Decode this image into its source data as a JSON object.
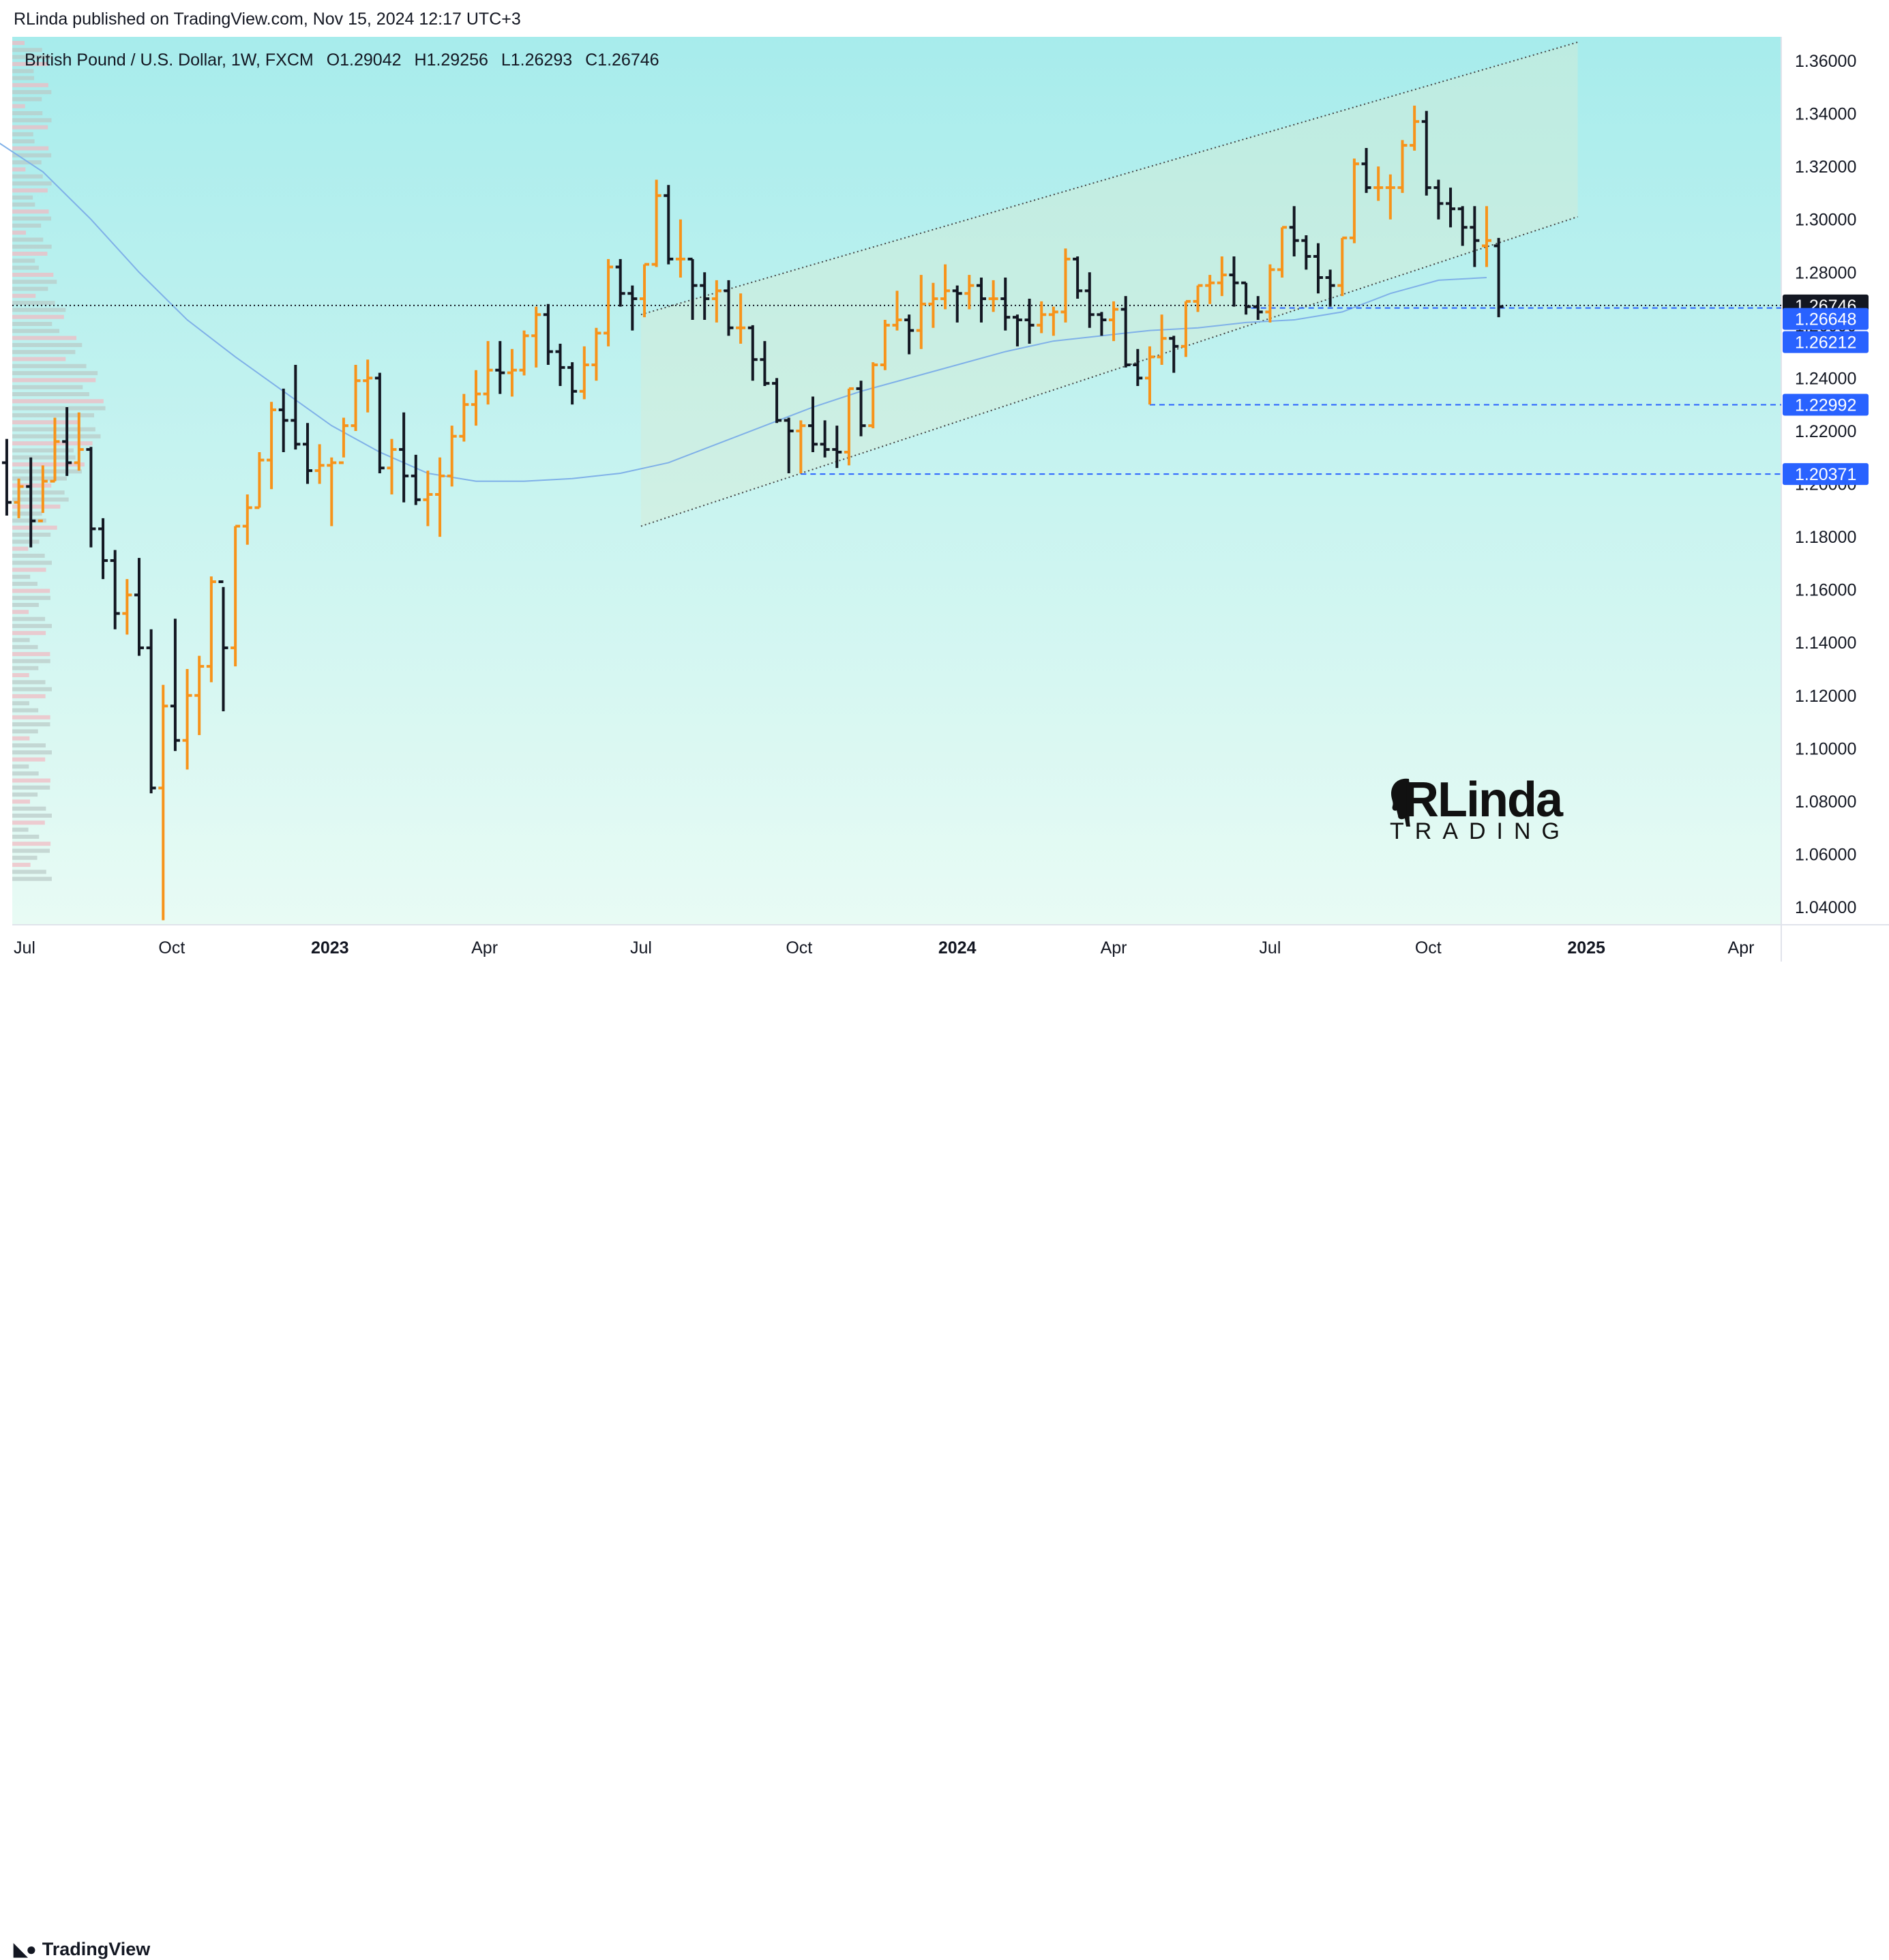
{
  "header": {
    "published": "RLinda published on TradingView.com, Nov 15, 2024 12:17 UTC+3"
  },
  "legend": {
    "symbol": "British Pound / U.S. Dollar, 1W, FXCM",
    "open": "O1.29042",
    "high": "H1.29256",
    "low": "L1.26293",
    "close": "C1.26746"
  },
  "branding": {
    "tv_label": "TradingView",
    "author_logo_main": "RLinda",
    "author_logo_sub": "TRADING"
  },
  "colors": {
    "up_bar": "#f7931a",
    "down_bar": "#131722",
    "ma_line": "#7fb0e8",
    "level_line": "#2962ff",
    "price_tag": "#2962ff",
    "last_price_tag": "#131722",
    "channel": "#444444",
    "background_top": "#a7ecec",
    "background_bottom": "#e8fbf4"
  },
  "chart_data": {
    "type": "ohlc",
    "title": "British Pound / U.S. Dollar, 1W, FXCM",
    "ylim": [
      1.03,
      1.37
    ],
    "y_ticks": [
      "1.36000",
      "1.34000",
      "1.32000",
      "1.30000",
      "1.28000",
      "1.26000",
      "1.24000",
      "1.22000",
      "1.20000",
      "1.18000",
      "1.16000",
      "1.14000",
      "1.12000",
      "1.10000",
      "1.08000",
      "1.06000",
      "1.04000"
    ],
    "x_ticks": [
      {
        "label": "Jul",
        "date": "2022-07-01",
        "bold": false
      },
      {
        "label": "Oct",
        "date": "2022-10-01",
        "bold": false
      },
      {
        "label": "2023",
        "date": "2023-01-01",
        "bold": true
      },
      {
        "label": "Apr",
        "date": "2023-04-01",
        "bold": false
      },
      {
        "label": "Jul",
        "date": "2023-07-01",
        "bold": false
      },
      {
        "label": "Oct",
        "date": "2023-10-01",
        "bold": false
      },
      {
        "label": "2024",
        "date": "2024-01-01",
        "bold": true
      },
      {
        "label": "Apr",
        "date": "2024-04-01",
        "bold": false
      },
      {
        "label": "Jul",
        "date": "2024-07-01",
        "bold": false
      },
      {
        "label": "Oct",
        "date": "2024-10-01",
        "bold": false
      },
      {
        "label": "2025",
        "date": "2025-01-01",
        "bold": true
      },
      {
        "label": "Apr",
        "date": "2025-04-01",
        "bold": false
      }
    ],
    "last_price": "1.26746",
    "levels": [
      {
        "value": 1.26648,
        "label": "1.26648",
        "start_date": "2024-06-20"
      },
      {
        "value": 1.26212,
        "label": "1.26212",
        "start_date": ""
      },
      {
        "value": 1.22992,
        "label": "1.22992",
        "start_date": "2024-04-22"
      },
      {
        "value": 1.20371,
        "label": "1.20371",
        "start_date": "2023-10-02"
      }
    ],
    "channel": {
      "upper": [
        [
          "2023-07-01",
          1.264
        ],
        [
          "2024-12-27",
          1.367
        ]
      ],
      "lower": [
        [
          "2023-07-01",
          1.184
        ],
        [
          "2024-12-27",
          1.301
        ]
      ],
      "shade_end_date": "2024-12-27"
    },
    "moving_average": [
      [
        "2022-06-20",
        1.33
      ],
      [
        "2022-07-18",
        1.318
      ],
      [
        "2022-08-15",
        1.3
      ],
      [
        "2022-09-12",
        1.28
      ],
      [
        "2022-10-10",
        1.262
      ],
      [
        "2022-11-07",
        1.248
      ],
      [
        "2022-12-05",
        1.235
      ],
      [
        "2023-01-02",
        1.222
      ],
      [
        "2023-01-30",
        1.212
      ],
      [
        "2023-02-27",
        1.204
      ],
      [
        "2023-03-27",
        1.201
      ],
      [
        "2023-04-24",
        1.201
      ],
      [
        "2023-05-22",
        1.202
      ],
      [
        "2023-06-19",
        1.204
      ],
      [
        "2023-07-17",
        1.208
      ],
      [
        "2023-08-14",
        1.215
      ],
      [
        "2023-09-11",
        1.222
      ],
      [
        "2023-10-09",
        1.229
      ],
      [
        "2023-11-06",
        1.235
      ],
      [
        "2023-12-04",
        1.24
      ],
      [
        "2024-01-01",
        1.245
      ],
      [
        "2024-01-29",
        1.25
      ],
      [
        "2024-02-26",
        1.254
      ],
      [
        "2024-03-25",
        1.256
      ],
      [
        "2024-04-22",
        1.258
      ],
      [
        "2024-05-20",
        1.259
      ],
      [
        "2024-06-17",
        1.261
      ],
      [
        "2024-07-15",
        1.262
      ],
      [
        "2024-08-12",
        1.265
      ],
      [
        "2024-09-09",
        1.272
      ],
      [
        "2024-10-07",
        1.277
      ],
      [
        "2024-11-04",
        1.278
      ]
    ],
    "bars": [
      [
        "2022-06-20",
        1.225,
        1.231,
        1.205,
        1.208
      ],
      [
        "2022-06-27",
        1.208,
        1.217,
        1.188,
        1.193
      ],
      [
        "2022-07-04",
        1.193,
        1.202,
        1.187,
        1.199
      ],
      [
        "2022-07-11",
        1.199,
        1.21,
        1.176,
        1.186
      ],
      [
        "2022-07-18",
        1.186,
        1.207,
        1.189,
        1.201
      ],
      [
        "2022-07-25",
        1.201,
        1.225,
        1.201,
        1.216
      ],
      [
        "2022-08-01",
        1.216,
        1.229,
        1.203,
        1.208
      ],
      [
        "2022-08-08",
        1.208,
        1.227,
        1.205,
        1.213
      ],
      [
        "2022-08-15",
        1.213,
        1.214,
        1.176,
        1.183
      ],
      [
        "2022-08-22",
        1.183,
        1.187,
        1.164,
        1.171
      ],
      [
        "2022-08-29",
        1.171,
        1.175,
        1.145,
        1.151
      ],
      [
        "2022-09-05",
        1.151,
        1.164,
        1.143,
        1.158
      ],
      [
        "2022-09-12",
        1.158,
        1.172,
        1.135,
        1.138
      ],
      [
        "2022-09-19",
        1.138,
        1.145,
        1.083,
        1.085
      ],
      [
        "2022-09-26",
        1.085,
        1.124,
        1.035,
        1.116
      ],
      [
        "2022-10-03",
        1.116,
        1.149,
        1.099,
        1.103
      ],
      [
        "2022-10-10",
        1.103,
        1.13,
        1.092,
        1.12
      ],
      [
        "2022-10-17",
        1.12,
        1.135,
        1.105,
        1.131
      ],
      [
        "2022-10-24",
        1.131,
        1.165,
        1.125,
        1.163
      ],
      [
        "2022-10-31",
        1.163,
        1.161,
        1.114,
        1.138
      ],
      [
        "2022-11-07",
        1.138,
        1.184,
        1.131,
        1.184
      ],
      [
        "2022-11-14",
        1.184,
        1.196,
        1.177,
        1.191
      ],
      [
        "2022-11-21",
        1.191,
        1.212,
        1.191,
        1.209
      ],
      [
        "2022-11-28",
        1.209,
        1.231,
        1.198,
        1.228
      ],
      [
        "2022-12-05",
        1.228,
        1.236,
        1.212,
        1.224
      ],
      [
        "2022-12-12",
        1.224,
        1.245,
        1.213,
        1.215
      ],
      [
        "2022-12-19",
        1.215,
        1.223,
        1.2,
        1.205
      ],
      [
        "2022-12-26",
        1.205,
        1.215,
        1.2,
        1.207
      ],
      [
        "2023-01-02",
        1.207,
        1.21,
        1.184,
        1.208
      ],
      [
        "2023-01-09",
        1.208,
        1.225,
        1.21,
        1.222
      ],
      [
        "2023-01-16",
        1.222,
        1.245,
        1.22,
        1.239
      ],
      [
        "2023-01-23",
        1.239,
        1.247,
        1.227,
        1.24
      ],
      [
        "2023-01-30",
        1.24,
        1.242,
        1.204,
        1.206
      ],
      [
        "2023-02-06",
        1.206,
        1.217,
        1.196,
        1.213
      ],
      [
        "2023-02-13",
        1.213,
        1.227,
        1.193,
        1.203
      ],
      [
        "2023-02-20",
        1.203,
        1.211,
        1.192,
        1.194
      ],
      [
        "2023-02-27",
        1.194,
        1.205,
        1.184,
        1.196
      ],
      [
        "2023-03-06",
        1.196,
        1.21,
        1.18,
        1.203
      ],
      [
        "2023-03-13",
        1.203,
        1.222,
        1.199,
        1.218
      ],
      [
        "2023-03-20",
        1.218,
        1.234,
        1.216,
        1.23
      ],
      [
        "2023-03-27",
        1.23,
        1.243,
        1.222,
        1.234
      ],
      [
        "2023-04-03",
        1.234,
        1.254,
        1.23,
        1.243
      ],
      [
        "2023-04-10",
        1.243,
        1.254,
        1.234,
        1.242
      ],
      [
        "2023-04-17",
        1.242,
        1.251,
        1.233,
        1.243
      ],
      [
        "2023-04-24",
        1.243,
        1.258,
        1.241,
        1.256
      ],
      [
        "2023-05-01",
        1.256,
        1.267,
        1.244,
        1.264
      ],
      [
        "2023-05-08",
        1.264,
        1.268,
        1.245,
        1.25
      ],
      [
        "2023-05-15",
        1.25,
        1.253,
        1.237,
        1.244
      ],
      [
        "2023-05-22",
        1.244,
        1.246,
        1.23,
        1.235
      ],
      [
        "2023-05-29",
        1.235,
        1.252,
        1.232,
        1.245
      ],
      [
        "2023-06-05",
        1.245,
        1.259,
        1.239,
        1.257
      ],
      [
        "2023-06-12",
        1.257,
        1.285,
        1.252,
        1.282
      ],
      [
        "2023-06-19",
        1.282,
        1.285,
        1.267,
        1.272
      ],
      [
        "2023-06-26",
        1.272,
        1.275,
        1.258,
        1.27
      ],
      [
        "2023-07-03",
        1.27,
        1.283,
        1.263,
        1.283
      ],
      [
        "2023-07-10",
        1.283,
        1.315,
        1.282,
        1.309
      ],
      [
        "2023-07-17",
        1.309,
        1.313,
        1.283,
        1.285
      ],
      [
        "2023-07-24",
        1.285,
        1.3,
        1.278,
        1.285
      ],
      [
        "2023-07-31",
        1.285,
        1.285,
        1.262,
        1.275
      ],
      [
        "2023-08-07",
        1.275,
        1.28,
        1.262,
        1.27
      ],
      [
        "2023-08-14",
        1.27,
        1.277,
        1.261,
        1.273
      ],
      [
        "2023-08-21",
        1.273,
        1.277,
        1.256,
        1.259
      ],
      [
        "2023-08-28",
        1.259,
        1.272,
        1.253,
        1.259
      ],
      [
        "2023-09-04",
        1.259,
        1.26,
        1.239,
        1.247
      ],
      [
        "2023-09-11",
        1.247,
        1.254,
        1.237,
        1.238
      ],
      [
        "2023-09-18",
        1.238,
        1.24,
        1.223,
        1.224
      ],
      [
        "2023-09-25",
        1.224,
        1.225,
        1.204,
        1.22
      ],
      [
        "2023-10-02",
        1.22,
        1.224,
        1.204,
        1.222
      ],
      [
        "2023-10-09",
        1.222,
        1.233,
        1.212,
        1.215
      ],
      [
        "2023-10-16",
        1.215,
        1.224,
        1.21,
        1.213
      ],
      [
        "2023-10-23",
        1.213,
        1.222,
        1.206,
        1.212
      ],
      [
        "2023-10-30",
        1.212,
        1.236,
        1.207,
        1.236
      ],
      [
        "2023-11-06",
        1.236,
        1.239,
        1.218,
        1.222
      ],
      [
        "2023-11-13",
        1.222,
        1.246,
        1.221,
        1.245
      ],
      [
        "2023-11-20",
        1.245,
        1.262,
        1.243,
        1.26
      ],
      [
        "2023-11-27",
        1.26,
        1.273,
        1.258,
        1.262
      ],
      [
        "2023-12-04",
        1.262,
        1.264,
        1.249,
        1.258
      ],
      [
        "2023-12-11",
        1.258,
        1.279,
        1.251,
        1.268
      ],
      [
        "2023-12-18",
        1.268,
        1.276,
        1.259,
        1.27
      ],
      [
        "2023-12-25",
        1.27,
        1.283,
        1.266,
        1.273
      ],
      [
        "2024-01-01",
        1.273,
        1.275,
        1.261,
        1.272
      ],
      [
        "2024-01-08",
        1.272,
        1.279,
        1.266,
        1.275
      ],
      [
        "2024-01-15",
        1.275,
        1.278,
        1.261,
        1.27
      ],
      [
        "2024-01-22",
        1.27,
        1.277,
        1.265,
        1.27
      ],
      [
        "2024-01-29",
        1.27,
        1.278,
        1.258,
        1.263
      ],
      [
        "2024-02-05",
        1.263,
        1.264,
        1.252,
        1.262
      ],
      [
        "2024-02-12",
        1.262,
        1.27,
        1.253,
        1.26
      ],
      [
        "2024-02-19",
        1.26,
        1.269,
        1.257,
        1.264
      ],
      [
        "2024-02-26",
        1.264,
        1.267,
        1.256,
        1.265
      ],
      [
        "2024-03-04",
        1.265,
        1.289,
        1.261,
        1.285
      ],
      [
        "2024-03-11",
        1.285,
        1.286,
        1.27,
        1.273
      ],
      [
        "2024-03-18",
        1.273,
        1.28,
        1.259,
        1.264
      ],
      [
        "2024-03-25",
        1.264,
        1.265,
        1.256,
        1.262
      ],
      [
        "2024-04-01",
        1.262,
        1.269,
        1.254,
        1.266
      ],
      [
        "2024-04-08",
        1.266,
        1.271,
        1.244,
        1.245
      ],
      [
        "2024-04-15",
        1.245,
        1.251,
        1.237,
        1.24
      ],
      [
        "2024-04-22",
        1.24,
        1.252,
        1.23,
        1.248
      ],
      [
        "2024-04-29",
        1.248,
        1.264,
        1.245,
        1.255
      ],
      [
        "2024-05-06",
        1.255,
        1.256,
        1.242,
        1.252
      ],
      [
        "2024-05-13",
        1.252,
        1.269,
        1.248,
        1.269
      ],
      [
        "2024-05-20",
        1.269,
        1.275,
        1.265,
        1.275
      ],
      [
        "2024-05-27",
        1.275,
        1.279,
        1.268,
        1.276
      ],
      [
        "2024-06-03",
        1.276,
        1.286,
        1.271,
        1.279
      ],
      [
        "2024-06-10",
        1.279,
        1.286,
        1.267,
        1.276
      ],
      [
        "2024-06-17",
        1.276,
        1.276,
        1.264,
        1.267
      ],
      [
        "2024-06-24",
        1.267,
        1.271,
        1.262,
        1.265
      ],
      [
        "2024-07-01",
        1.265,
        1.283,
        1.261,
        1.281
      ],
      [
        "2024-07-08",
        1.281,
        1.297,
        1.278,
        1.297
      ],
      [
        "2024-07-15",
        1.297,
        1.305,
        1.286,
        1.292
      ],
      [
        "2024-07-22",
        1.292,
        1.294,
        1.281,
        1.286
      ],
      [
        "2024-07-29",
        1.286,
        1.291,
        1.272,
        1.278
      ],
      [
        "2024-08-05",
        1.278,
        1.281,
        1.267,
        1.275
      ],
      [
        "2024-08-12",
        1.275,
        1.293,
        1.271,
        1.293
      ],
      [
        "2024-08-19",
        1.293,
        1.323,
        1.291,
        1.321
      ],
      [
        "2024-08-26",
        1.321,
        1.327,
        1.31,
        1.312
      ],
      [
        "2024-09-02",
        1.312,
        1.32,
        1.307,
        1.312
      ],
      [
        "2024-09-09",
        1.312,
        1.317,
        1.3,
        1.312
      ],
      [
        "2024-09-16",
        1.312,
        1.33,
        1.31,
        1.328
      ],
      [
        "2024-09-23",
        1.328,
        1.343,
        1.326,
        1.337
      ],
      [
        "2024-09-30",
        1.337,
        1.341,
        1.309,
        1.312
      ],
      [
        "2024-10-07",
        1.312,
        1.315,
        1.3,
        1.306
      ],
      [
        "2024-10-14",
        1.306,
        1.312,
        1.297,
        1.304
      ],
      [
        "2024-10-21",
        1.304,
        1.305,
        1.29,
        1.297
      ],
      [
        "2024-10-28",
        1.297,
        1.305,
        1.282,
        1.292
      ],
      [
        "2024-11-04",
        1.29,
        1.305,
        1.282,
        1.292
      ],
      [
        "2024-11-11",
        1.29,
        1.293,
        1.263,
        1.267
      ]
    ]
  }
}
